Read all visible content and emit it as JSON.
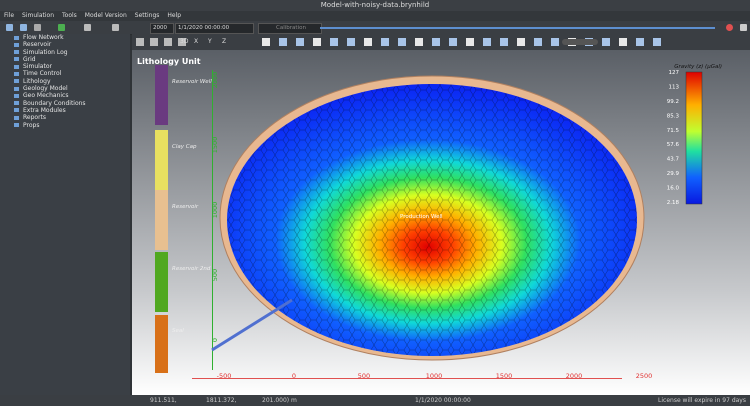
{
  "window": {
    "title": "Model-with-noisy-data.brynhild"
  },
  "menu": [
    "File",
    "Simulation",
    "Tools",
    "Model Version",
    "Settings",
    "Help"
  ],
  "toolbar": {
    "year": "2000",
    "date": "1/1/2020 00:00:00",
    "mode": "Calibration",
    "view_buttons": [
      "3D",
      "X",
      "Y",
      "Z"
    ]
  },
  "tree": [
    "Flow Network",
    "Reservoir",
    "Simulation Log",
    "Grid",
    "Simulator",
    "Time Control",
    "Lithology",
    "Geology Model",
    "Geo Mechanics",
    "Boundary Conditions",
    "Extra Modules",
    "Reports",
    "Props"
  ],
  "viewport": {
    "title": "Lithology Unit",
    "lithology": [
      "Reservoir Well",
      "Clay Cap",
      "Reservoir",
      "Reservoir 2nd",
      "Seal"
    ],
    "colorbar": {
      "title": "Gravity (z) (µGal)",
      "ticks": [
        "127",
        "113",
        "99.2",
        "85.3",
        "71.5",
        "57.6",
        "43.7",
        "29.9",
        "16.0",
        "2.18"
      ]
    },
    "well_label": "Production Well",
    "x_ticks": [
      "-500",
      "0",
      "500",
      "1000",
      "1500",
      "2000",
      "2500"
    ],
    "y_ticks": [
      "2000",
      "1500",
      "1000",
      "500",
      "0"
    ]
  },
  "status": {
    "coords": [
      "911.511,",
      "1811.372,",
      "201.000) m"
    ],
    "time": "1/1/2020 00:00:00",
    "license": "License will expire in 97 days"
  }
}
